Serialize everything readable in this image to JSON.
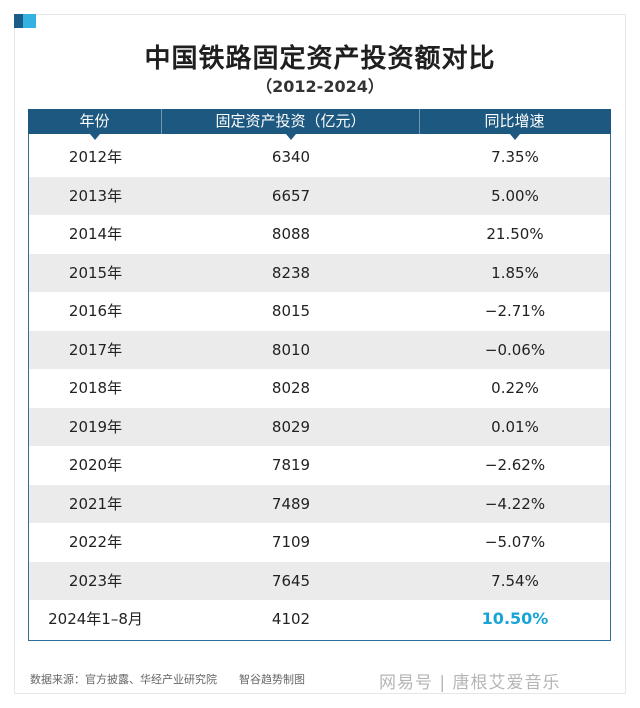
{
  "title": "中国铁路固定资产投资额对比",
  "subtitle": "（2012-2024）",
  "chart_data": {
    "type": "table",
    "columns": [
      "年份",
      "固定资产投资（亿元）",
      "同比增速"
    ],
    "rows": [
      [
        "2012年",
        "6340",
        "7.35%"
      ],
      [
        "2013年",
        "6657",
        "5.00%"
      ],
      [
        "2014年",
        "8088",
        "21.50%"
      ],
      [
        "2015年",
        "8238",
        "1.85%"
      ],
      [
        "2016年",
        "8015",
        "−2.71%"
      ],
      [
        "2017年",
        "8010",
        "−0.06%"
      ],
      [
        "2018年",
        "8028",
        "0.22%"
      ],
      [
        "2019年",
        "8029",
        "0.01%"
      ],
      [
        "2020年",
        "7819",
        "−2.62%"
      ],
      [
        "2021年",
        "7489",
        "−4.22%"
      ],
      [
        "2022年",
        "7109",
        "−5.07%"
      ],
      [
        "2023年",
        "7645",
        "7.54%"
      ],
      [
        "2024年1–8月",
        "4102",
        "10.50%"
      ]
    ],
    "highlight": {
      "row": 12,
      "col": 2,
      "color": "#1aa4d6"
    }
  },
  "footer": {
    "source": "数据来源：官方披露、华经产业研究院　　智谷趋势制图"
  },
  "watermark": "网易号 | 唐根艾爱音乐",
  "colors": {
    "header_bg": "#1d5880",
    "alt_row": "#ebebeb",
    "accent": "#33b1e0"
  }
}
